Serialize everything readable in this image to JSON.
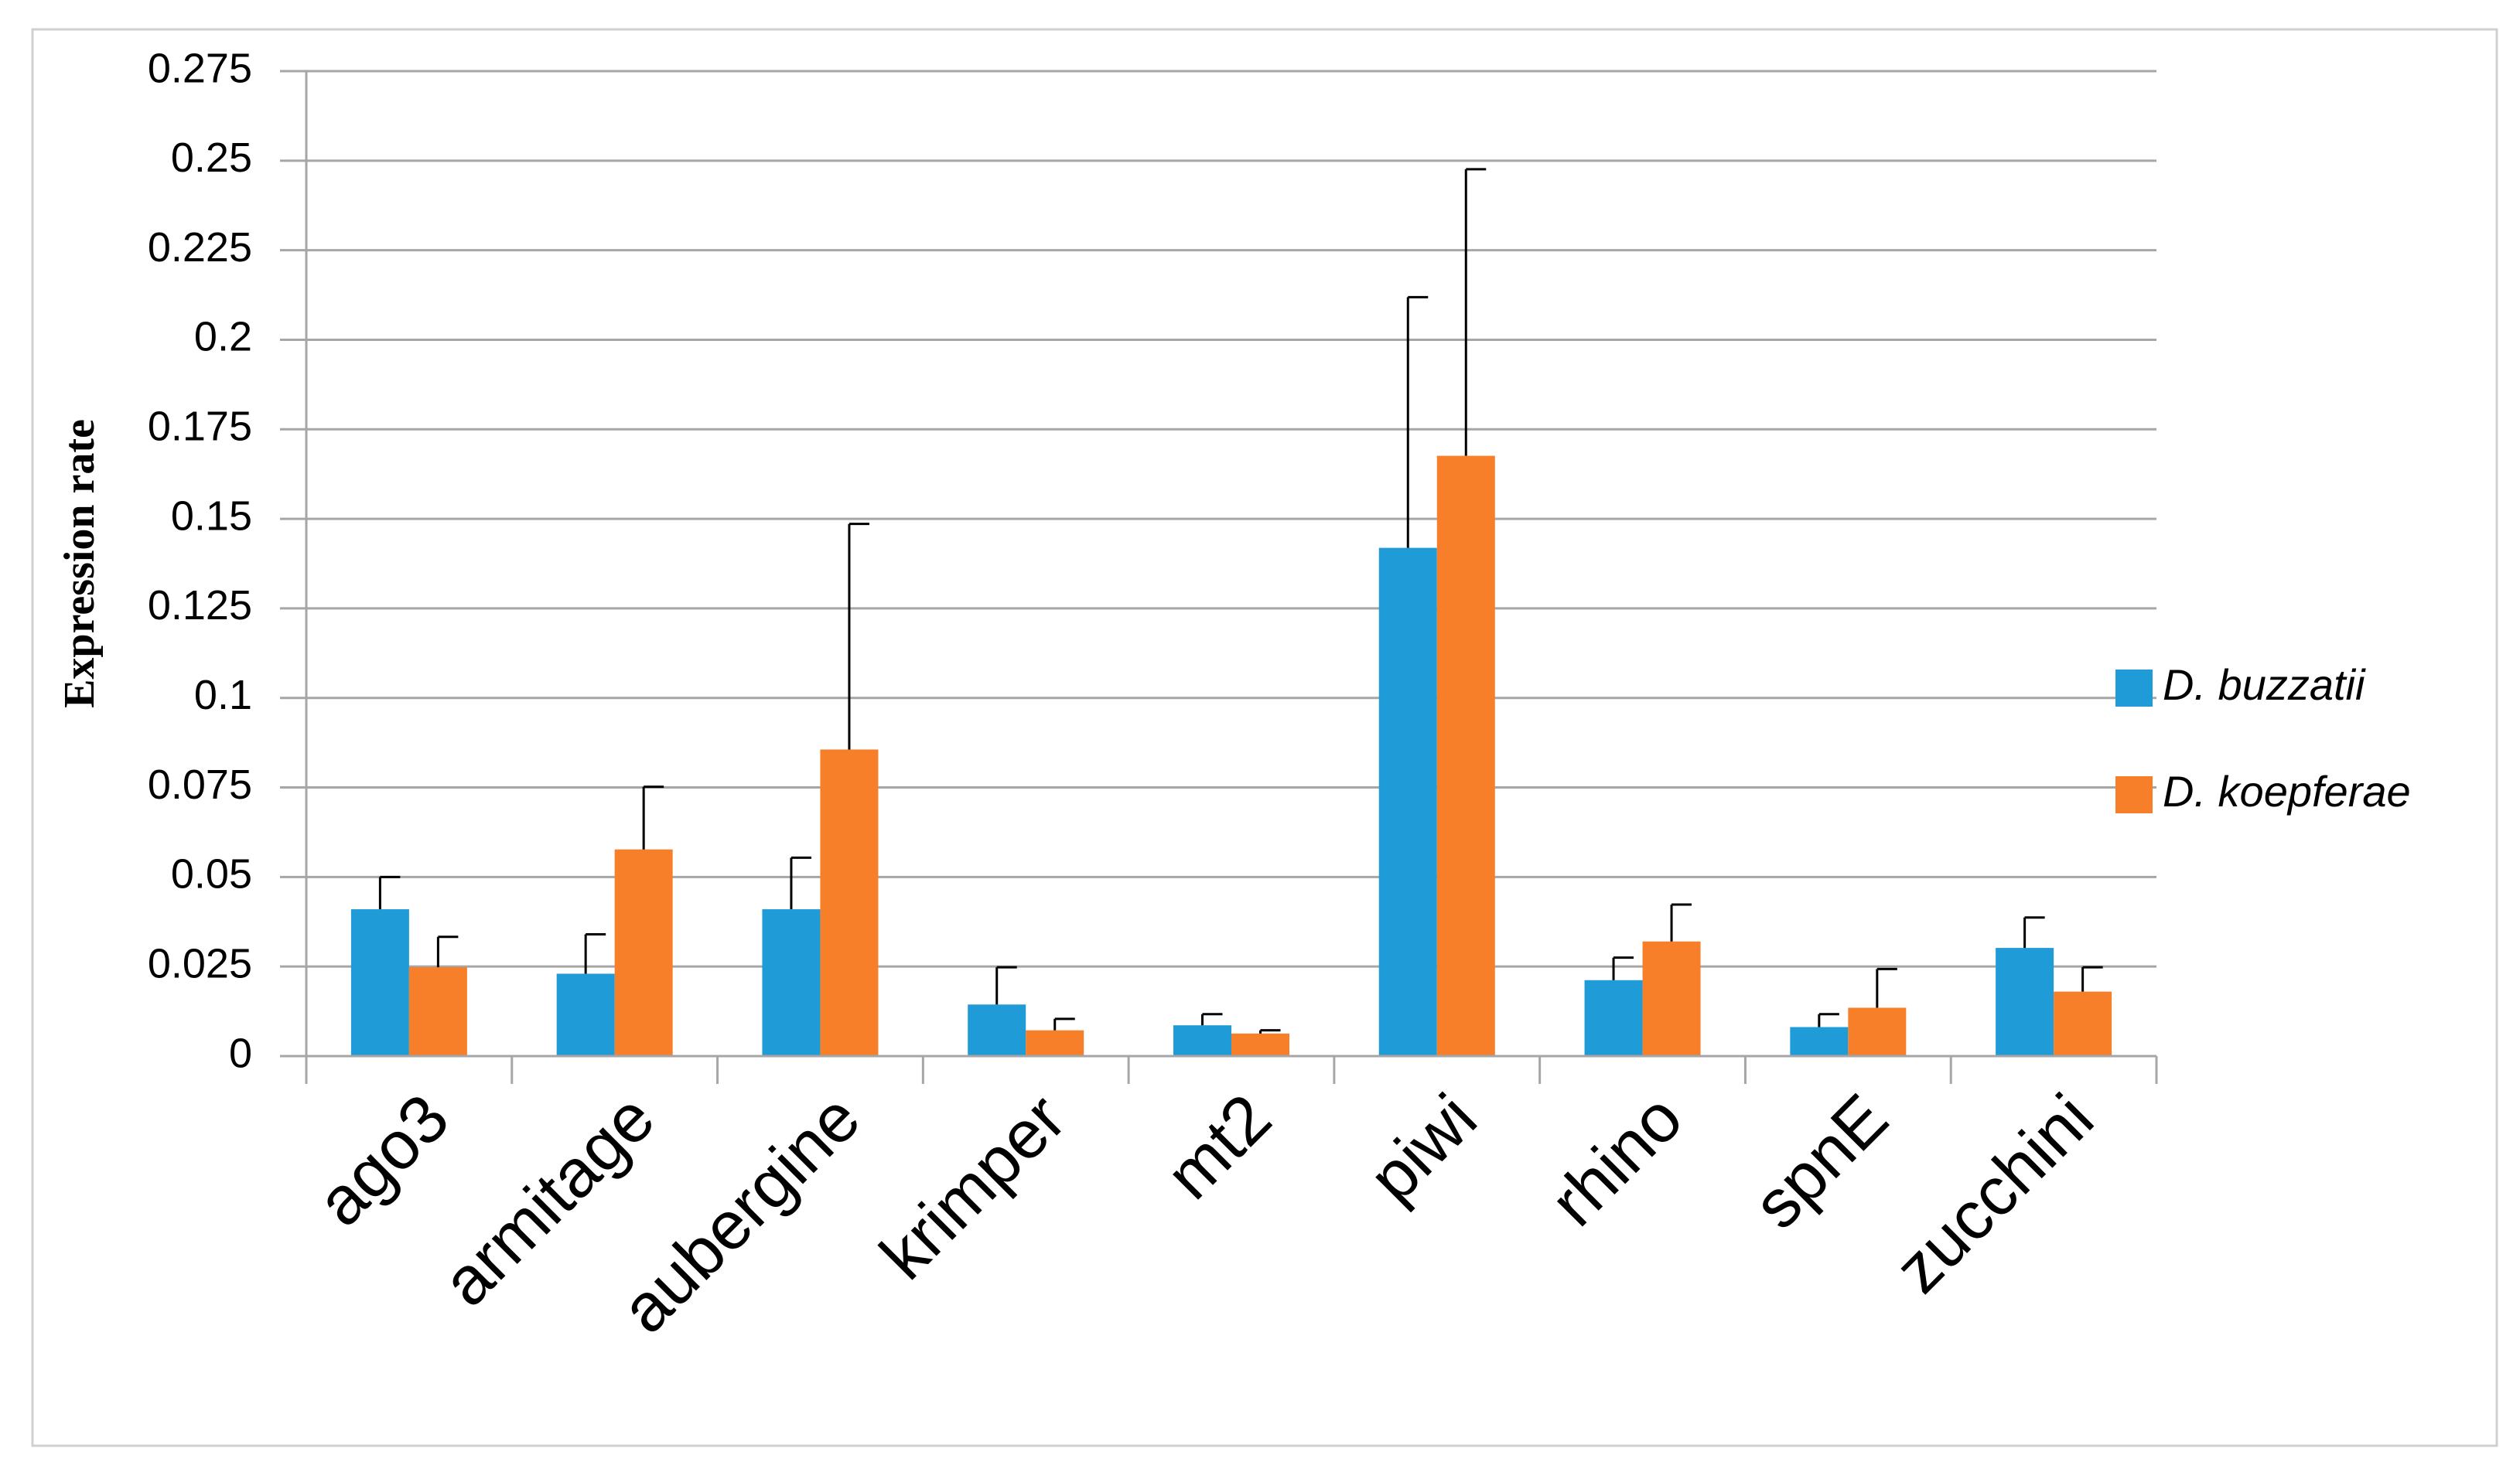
{
  "chart_data": {
    "type": "bar",
    "y_label": "Expression rate",
    "categories": [
      "ago3",
      "armitage",
      "aubergine",
      "krimper",
      "mt2",
      "piwi",
      "rhino",
      "spnE",
      "zucchini"
    ],
    "series": [
      {
        "name": "D. buzzatii",
        "color": "#1f9bd7",
        "values": [
          0.041,
          0.023,
          0.041,
          0.0144,
          0.0086,
          0.1419,
          0.0212,
          0.0081,
          0.0302
        ],
        "errors": [
          0.009,
          0.011,
          0.0144,
          0.0104,
          0.0031,
          0.07,
          0.0063,
          0.0036,
          0.0085
        ]
      },
      {
        "name": "D. koepferae",
        "color": "#f77f2a",
        "values": [
          0.0248,
          0.0577,
          0.0856,
          0.0072,
          0.0063,
          0.1676,
          0.032,
          0.0135,
          0.018
        ],
        "errors": [
          0.0085,
          0.0175,
          0.063,
          0.0032,
          0.0009,
          0.08,
          0.0103,
          0.0108,
          0.0068
        ]
      }
    ],
    "ylim": [
      0,
      0.275
    ],
    "yticks": [
      0,
      0.025,
      0.05,
      0.075,
      0.1,
      0.125,
      0.15,
      0.175,
      0.2,
      0.225,
      0.25,
      0.275
    ],
    "grid": true,
    "legend": "right"
  }
}
